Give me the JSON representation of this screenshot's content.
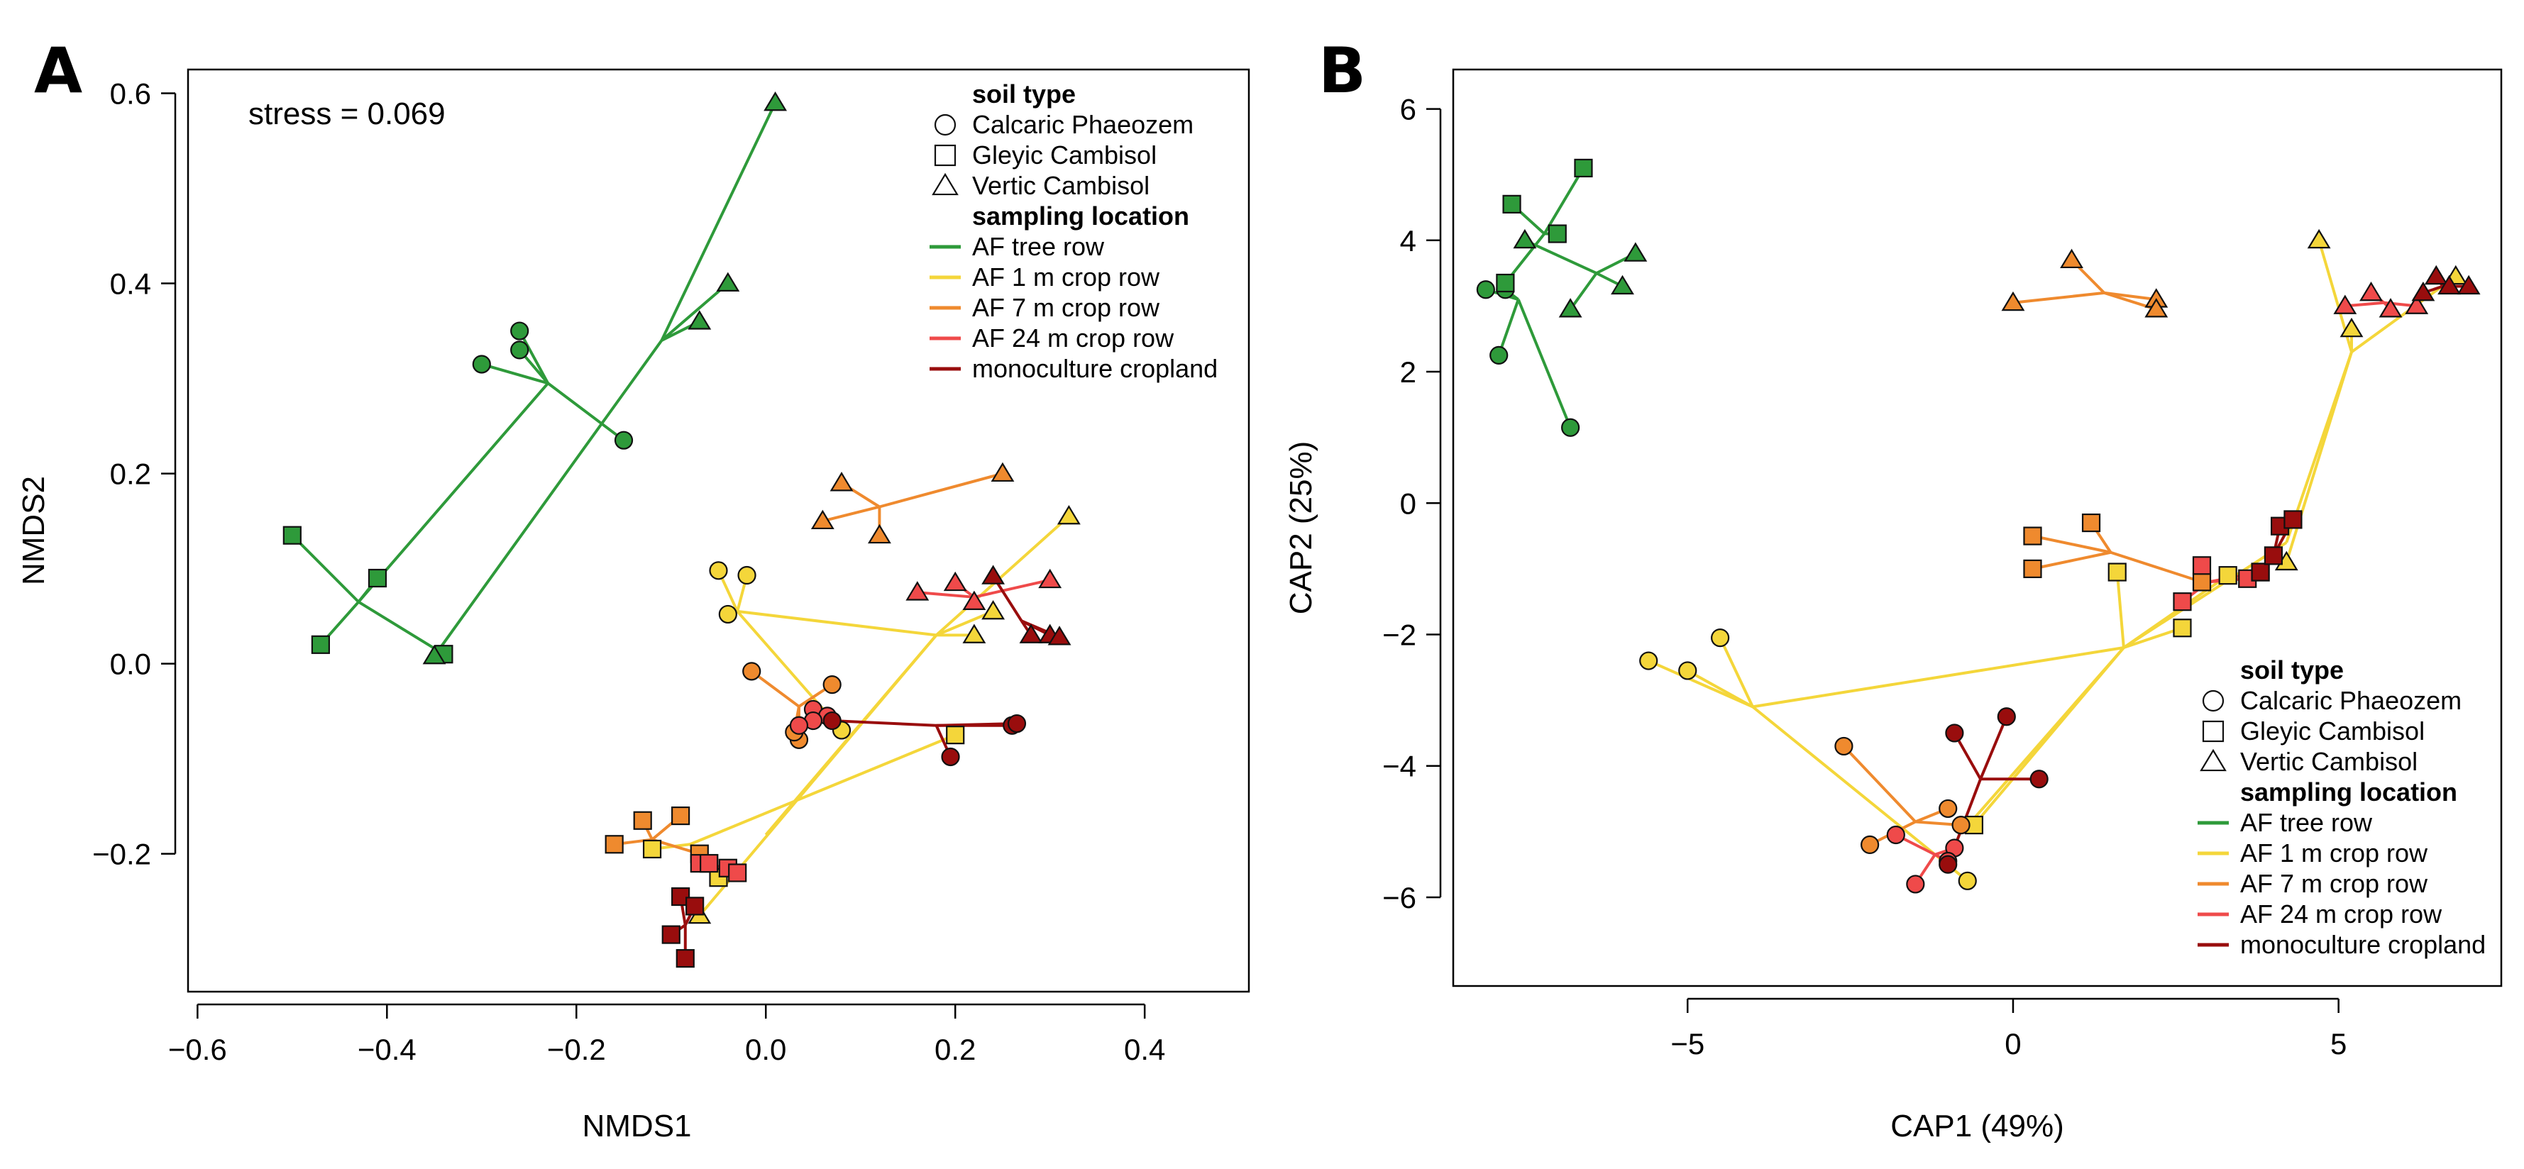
{
  "colors": {
    "tree": "#2e9a3a",
    "m1": "#f4d63a",
    "m7": "#ef8a2e",
    "m24": "#ef4a4a",
    "mono": "#990d0d"
  },
  "chart_data": [
    {
      "panel": "A",
      "type": "scatter",
      "xlabel": "NMDS1",
      "ylabel": "NMDS2",
      "annotation": "stress = 0.069",
      "xlim": [
        -0.61,
        0.51
      ],
      "ylim": [
        -0.345,
        0.625
      ],
      "xticks": [
        -0.6,
        -0.4,
        -0.2,
        0.0,
        0.2,
        0.4
      ],
      "xtick_labels": [
        "−0.6",
        "−0.4",
        "−0.2",
        "0.0",
        "0.2",
        "0.4"
      ],
      "yticks": [
        -0.2,
        0.0,
        0.2,
        0.4,
        0.6
      ],
      "ytick_labels": [
        "−0.2",
        "0.0",
        "0.2",
        "0.4",
        "0.6"
      ],
      "legend_position": "top-right",
      "legend": {
        "soil_title": "soil type",
        "soil_items": [
          {
            "shape": "circle",
            "label": "Calcaric Phaeozem"
          },
          {
            "shape": "square",
            "label": "Gleyic Cambisol"
          },
          {
            "shape": "triangle",
            "label": "Vertic Cambisol"
          }
        ],
        "loc_title": "sampling location",
        "loc_items": [
          {
            "key": "tree",
            "label": "AF tree row"
          },
          {
            "key": "m1",
            "label": "AF 1 m crop row"
          },
          {
            "key": "m7",
            "label": "AF 7 m crop row"
          },
          {
            "key": "m24",
            "label": "AF 24 m crop row"
          },
          {
            "key": "mono",
            "label": "monoculture cropland"
          }
        ]
      },
      "top_links": [
        {
          "color": "tree",
          "from": [
            -0.43,
            0.065
          ],
          "to": [
            -0.23,
            0.295
          ]
        },
        {
          "color": "m1",
          "from": [
            0.18,
            0.03
          ],
          "to": [
            0.0,
            -0.18
          ]
        },
        {
          "color": "m1",
          "from": [
            0.18,
            0.03
          ],
          "to": [
            -0.03,
            0.055
          ]
        }
      ],
      "groups": [
        {
          "color": "tree",
          "shape": "circle",
          "centroid": [
            -0.23,
            0.295
          ],
          "points": [
            [
              -0.3,
              0.315
            ],
            [
              -0.26,
              0.35
            ],
            [
              -0.26,
              0.33
            ],
            [
              -0.15,
              0.235
            ]
          ]
        },
        {
          "color": "tree",
          "shape": "square",
          "centroid": [
            -0.43,
            0.065
          ],
          "points": [
            [
              -0.5,
              0.135
            ],
            [
              -0.41,
              0.09
            ],
            [
              -0.47,
              0.02
            ],
            [
              -0.34,
              0.01
            ]
          ]
        },
        {
          "color": "tree",
          "shape": "triangle",
          "centroid": [
            -0.11,
            0.34
          ],
          "points": [
            [
              0.01,
              0.59
            ],
            [
              -0.04,
              0.4
            ],
            [
              -0.07,
              0.36
            ],
            [
              -0.35,
              0.008
            ]
          ]
        },
        {
          "color": "m1",
          "shape": "circle",
          "centroid": [
            -0.03,
            0.055
          ],
          "points": [
            [
              -0.05,
              0.098
            ],
            [
              -0.02,
              0.093
            ],
            [
              -0.04,
              0.052
            ],
            [
              0.08,
              -0.07
            ]
          ]
        },
        {
          "color": "m1",
          "shape": "square",
          "centroid": [
            -0.08,
            -0.19
          ],
          "points": [
            [
              -0.12,
              -0.195
            ],
            [
              -0.06,
              -0.21
            ],
            [
              -0.05,
              -0.225
            ],
            [
              0.2,
              -0.075
            ]
          ]
        },
        {
          "color": "m1",
          "shape": "triangle",
          "centroid": [
            0.18,
            0.03
          ],
          "points": [
            [
              0.32,
              0.155
            ],
            [
              0.24,
              0.055
            ],
            [
              0.22,
              0.03
            ],
            [
              -0.07,
              -0.265
            ]
          ]
        },
        {
          "color": "m7",
          "shape": "circle",
          "centroid": [
            0.035,
            -0.045
          ],
          "points": [
            [
              -0.015,
              -0.008
            ],
            [
              0.07,
              -0.022
            ],
            [
              0.035,
              -0.08
            ],
            [
              0.03,
              -0.072
            ]
          ]
        },
        {
          "color": "m7",
          "shape": "square",
          "centroid": [
            -0.12,
            -0.185
          ],
          "points": [
            [
              -0.16,
              -0.19
            ],
            [
              -0.13,
              -0.165
            ],
            [
              -0.09,
              -0.16
            ],
            [
              -0.07,
              -0.2
            ]
          ]
        },
        {
          "color": "m7",
          "shape": "triangle",
          "centroid": [
            0.12,
            0.165
          ],
          "points": [
            [
              0.08,
              0.19
            ],
            [
              0.25,
              0.2
            ],
            [
              0.06,
              0.15
            ],
            [
              0.12,
              0.135
            ]
          ]
        },
        {
          "color": "m24",
          "shape": "circle",
          "centroid": [
            0.05,
            -0.055
          ],
          "points": [
            [
              0.05,
              -0.048
            ],
            [
              0.065,
              -0.055
            ],
            [
              0.05,
              -0.06
            ],
            [
              0.035,
              -0.065
            ]
          ]
        },
        {
          "color": "m24",
          "shape": "square",
          "centroid": [
            -0.045,
            -0.215
          ],
          "points": [
            [
              -0.07,
              -0.21
            ],
            [
              -0.04,
              -0.215
            ],
            [
              -0.03,
              -0.22
            ],
            [
              -0.06,
              -0.21
            ]
          ]
        },
        {
          "color": "m24",
          "shape": "triangle",
          "centroid": [
            0.22,
            0.07
          ],
          "points": [
            [
              0.16,
              0.075
            ],
            [
              0.2,
              0.085
            ],
            [
              0.22,
              0.065
            ],
            [
              0.3,
              0.088
            ]
          ]
        },
        {
          "color": "mono",
          "shape": "circle",
          "centroid": [
            0.18,
            -0.065
          ],
          "points": [
            [
              0.07,
              -0.06
            ],
            [
              0.195,
              -0.098
            ],
            [
              0.26,
              -0.065
            ],
            [
              0.265,
              -0.063
            ]
          ]
        },
        {
          "color": "mono",
          "shape": "square",
          "centroid": [
            -0.085,
            -0.275
          ],
          "points": [
            [
              -0.09,
              -0.245
            ],
            [
              -0.075,
              -0.255
            ],
            [
              -0.1,
              -0.285
            ],
            [
              -0.085,
              -0.31
            ]
          ]
        },
        {
          "color": "mono",
          "shape": "triangle",
          "centroid": [
            0.27,
            0.045
          ],
          "points": [
            [
              0.24,
              0.092
            ],
            [
              0.28,
              0.03
            ],
            [
              0.3,
              0.03
            ],
            [
              0.31,
              0.028
            ]
          ]
        }
      ]
    },
    {
      "panel": "B",
      "type": "scatter",
      "xlabel": "CAP1 (49%)",
      "ylabel": "CAP2 (25%)",
      "xlim": [
        -8.6,
        7.5
      ],
      "ylim": [
        -7.35,
        6.6
      ],
      "xticks": [
        -5,
        0,
        5
      ],
      "xtick_labels": [
        "−5",
        "0",
        "5"
      ],
      "yticks": [
        -6,
        -4,
        -2,
        0,
        2,
        4,
        6
      ],
      "ytick_labels": [
        "−6",
        "−4",
        "−2",
        "0",
        "2",
        "4",
        "6"
      ],
      "legend_position": "bottom-right",
      "legend": {
        "soil_title": "soil type",
        "soil_items": [
          {
            "shape": "circle",
            "label": "Calcaric Phaeozem"
          },
          {
            "shape": "square",
            "label": "Gleyic Cambisol"
          },
          {
            "shape": "triangle",
            "label": "Vertic Cambisol"
          }
        ],
        "loc_title": "sampling location",
        "loc_items": [
          {
            "key": "tree",
            "label": "AF tree row"
          },
          {
            "key": "m1",
            "label": "AF 1 m crop row"
          },
          {
            "key": "m7",
            "label": "AF 7 m crop row"
          },
          {
            "key": "m24",
            "label": "AF 24 m crop row"
          },
          {
            "key": "mono",
            "label": "monoculture cropland"
          }
        ]
      },
      "top_links": [
        {
          "color": "m1",
          "from": [
            1.7,
            -2.2
          ],
          "to": [
            -4.0,
            -3.1
          ]
        },
        {
          "color": "m1",
          "from": [
            1.7,
            -2.2
          ],
          "to": [
            -0.6,
            -4.8
          ]
        },
        {
          "color": "m1",
          "from": [
            1.7,
            -2.2
          ],
          "to": [
            4.2,
            -0.6
          ]
        },
        {
          "color": "m1",
          "from": [
            4.2,
            -0.6
          ],
          "to": [
            5.2,
            2.3
          ]
        }
      ],
      "groups": [
        {
          "color": "tree",
          "shape": "circle",
          "centroid": [
            -7.6,
            3.1
          ],
          "points": [
            [
              -8.1,
              3.25
            ],
            [
              -7.8,
              3.25
            ],
            [
              -7.9,
              2.25
            ],
            [
              -6.8,
              1.15
            ]
          ]
        },
        {
          "color": "tree",
          "shape": "square",
          "centroid": [
            -7.2,
            4.1
          ],
          "points": [
            [
              -7.7,
              4.55
            ],
            [
              -7.0,
              4.1
            ],
            [
              -6.6,
              5.1
            ],
            [
              -7.8,
              3.35
            ]
          ]
        },
        {
          "color": "tree",
          "shape": "triangle",
          "centroid": [
            -6.4,
            3.5
          ],
          "points": [
            [
              -7.5,
              4.0
            ],
            [
              -6.0,
              3.3
            ],
            [
              -5.8,
              3.8
            ],
            [
              -6.8,
              2.95
            ]
          ]
        },
        {
          "color": "m1",
          "shape": "circle",
          "centroid": [
            -4.0,
            -3.1
          ],
          "points": [
            [
              -5.6,
              -2.4
            ],
            [
              -5.0,
              -2.55
            ],
            [
              -4.5,
              -2.05
            ],
            [
              -0.7,
              -5.75
            ]
          ]
        },
        {
          "color": "m1",
          "shape": "square",
          "centroid": [
            1.7,
            -2.2
          ],
          "points": [
            [
              1.6,
              -1.05
            ],
            [
              3.3,
              -1.1
            ],
            [
              2.6,
              -1.9
            ],
            [
              -0.6,
              -4.9
            ]
          ]
        },
        {
          "color": "m1",
          "shape": "triangle",
          "centroid": [
            5.2,
            2.3
          ],
          "points": [
            [
              4.7,
              4.0
            ],
            [
              5.2,
              2.65
            ],
            [
              6.8,
              3.45
            ],
            [
              4.2,
              -0.9
            ]
          ]
        },
        {
          "color": "m7",
          "shape": "circle",
          "centroid": [
            -1.5,
            -4.85
          ],
          "points": [
            [
              -2.6,
              -3.7
            ],
            [
              -1.0,
              -4.65
            ],
            [
              -2.2,
              -5.2
            ],
            [
              -0.8,
              -4.9
            ]
          ]
        },
        {
          "color": "m7",
          "shape": "square",
          "centroid": [
            1.5,
            -0.75
          ],
          "points": [
            [
              0.3,
              -0.5
            ],
            [
              1.2,
              -0.3
            ],
            [
              0.3,
              -1.0
            ],
            [
              2.9,
              -1.2
            ]
          ]
        },
        {
          "color": "m7",
          "shape": "triangle",
          "centroid": [
            1.4,
            3.2
          ],
          "points": [
            [
              0.9,
              3.7
            ],
            [
              2.2,
              3.1
            ],
            [
              0.0,
              3.05
            ],
            [
              2.2,
              2.95
            ]
          ]
        },
        {
          "color": "m24",
          "shape": "circle",
          "centroid": [
            -1.2,
            -5.35
          ],
          "points": [
            [
              -1.8,
              -5.05
            ],
            [
              -0.9,
              -5.25
            ],
            [
              -1.5,
              -5.8
            ],
            [
              -1.0,
              -5.45
            ]
          ]
        },
        {
          "color": "m24",
          "shape": "square",
          "centroid": [
            3.0,
            -1.2
          ],
          "points": [
            [
              2.9,
              -0.95
            ],
            [
              3.6,
              -1.15
            ],
            [
              3.8,
              -1.05
            ],
            [
              2.6,
              -1.5
            ]
          ]
        },
        {
          "color": "m24",
          "shape": "triangle",
          "centroid": [
            5.7,
            3.05
          ],
          "points": [
            [
              5.1,
              3.0
            ],
            [
              5.5,
              3.2
            ],
            [
              6.2,
              3.0
            ],
            [
              5.8,
              2.95
            ]
          ]
        },
        {
          "color": "mono",
          "shape": "circle",
          "centroid": [
            -0.5,
            -4.2
          ],
          "points": [
            [
              -0.9,
              -3.5
            ],
            [
              -0.1,
              -3.25
            ],
            [
              0.4,
              -4.2
            ],
            [
              -1.0,
              -5.5
            ]
          ]
        },
        {
          "color": "mono",
          "shape": "square",
          "centroid": [
            4.0,
            -0.8
          ],
          "points": [
            [
              3.8,
              -1.05
            ],
            [
              4.0,
              -0.8
            ],
            [
              4.1,
              -0.35
            ],
            [
              4.3,
              -0.25
            ]
          ]
        },
        {
          "color": "mono",
          "shape": "triangle",
          "centroid": [
            6.6,
            3.3
          ],
          "points": [
            [
              6.3,
              3.2
            ],
            [
              6.5,
              3.45
            ],
            [
              6.7,
              3.3
            ],
            [
              7.0,
              3.3
            ]
          ]
        }
      ]
    }
  ]
}
